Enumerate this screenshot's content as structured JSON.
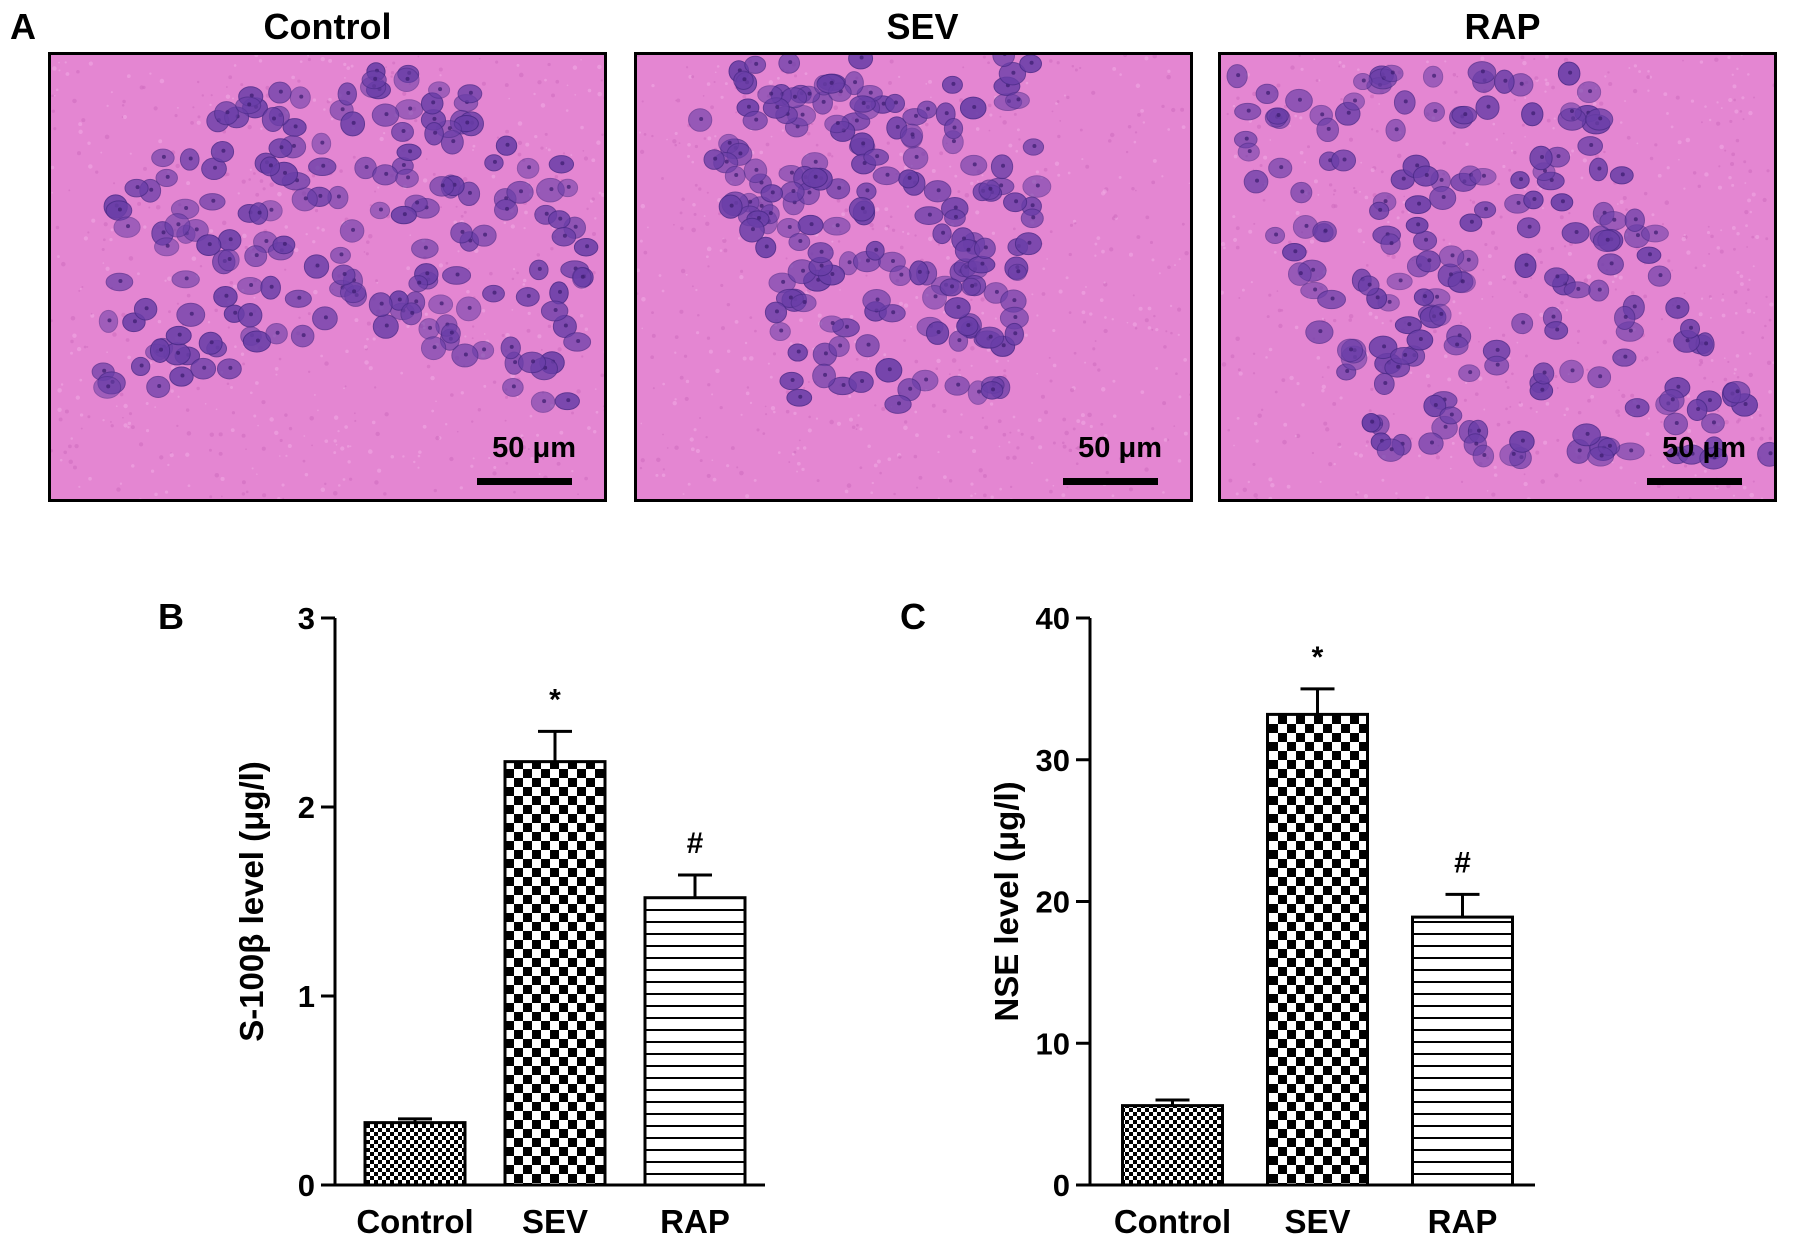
{
  "figure": {
    "panel_a_label": "A",
    "panel_b_label": "B",
    "panel_c_label": "C",
    "micrographs": [
      {
        "title": "Control",
        "scale_label": "50 μm"
      },
      {
        "title": "SEV",
        "scale_label": "50 μm"
      },
      {
        "title": "RAP",
        "scale_label": "50 μm"
      }
    ],
    "colors": {
      "stain_background": "#e486d2",
      "stain_nuclei": "#6a3ea8",
      "bar_outline": "#000000"
    }
  },
  "chart_data": [
    {
      "type": "bar",
      "title": "",
      "xlabel": "",
      "ylabel": "S-100β level (μg/l)",
      "categories": [
        "Control",
        "SEV",
        "RAP"
      ],
      "values": [
        0.33,
        2.24,
        1.52
      ],
      "errors": [
        0.02,
        0.16,
        0.12
      ],
      "annotations": [
        "",
        "*",
        "#"
      ],
      "patterns": [
        "fine-check",
        "coarse-check",
        "horizontal-lines"
      ],
      "ylim": [
        0,
        3
      ],
      "yticks": [
        "0",
        "1",
        "2",
        "3"
      ],
      "grid": false
    },
    {
      "type": "bar",
      "title": "",
      "xlabel": "",
      "ylabel": "NSE level (μg/l)",
      "categories": [
        "Control",
        "SEV",
        "RAP"
      ],
      "values": [
        5.6,
        33.2,
        18.9
      ],
      "errors": [
        0.4,
        1.8,
        1.6
      ],
      "annotations": [
        "",
        "*",
        "#"
      ],
      "patterns": [
        "fine-check",
        "coarse-check",
        "horizontal-lines"
      ],
      "ylim": [
        0,
        40
      ],
      "yticks": [
        "0",
        "10",
        "20",
        "30",
        "40"
      ],
      "grid": false
    }
  ]
}
